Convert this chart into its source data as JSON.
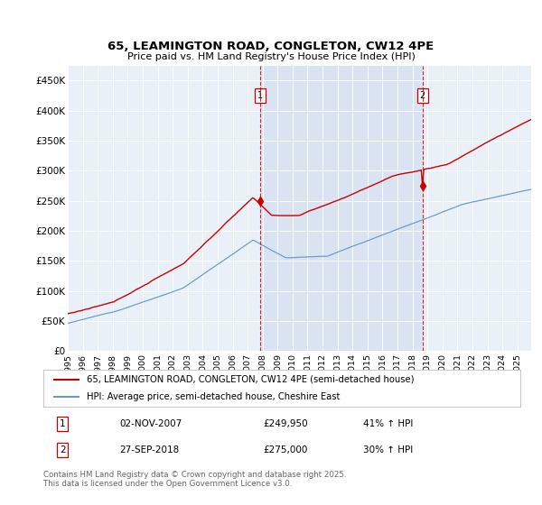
{
  "title": "65, LEAMINGTON ROAD, CONGLETON, CW12 4PE",
  "subtitle": "Price paid vs. HM Land Registry's House Price Index (HPI)",
  "background_color": "#ffffff",
  "plot_bg_color": "#dce6f5",
  "plot_bg_light": "#eaf0f8",
  "grid_color": "#ffffff",
  "red_line_color": "#cc0000",
  "blue_line_color": "#6699cc",
  "shade_color": "#ccd9ee",
  "ylim": [
    0,
    475000
  ],
  "yticks": [
    0,
    50000,
    100000,
    150000,
    200000,
    250000,
    300000,
    350000,
    400000,
    450000
  ],
  "ytick_labels": [
    "£0",
    "£50K",
    "£100K",
    "£150K",
    "£200K",
    "£250K",
    "£300K",
    "£350K",
    "£400K",
    "£450K"
  ],
  "marker1_x": "2007-11",
  "marker1_price": 249950,
  "marker1_date_str": "02-NOV-2007",
  "marker1_hpi_pct": "41% ↑ HPI",
  "marker2_x": "2018-09",
  "marker2_price": 275000,
  "marker2_date_str": "27-SEP-2018",
  "marker2_hpi_pct": "30% ↑ HPI",
  "legend_red": "65, LEAMINGTON ROAD, CONGLETON, CW12 4PE (semi-detached house)",
  "legend_blue": "HPI: Average price, semi-detached house, Cheshire East",
  "footer": "Contains HM Land Registry data © Crown copyright and database right 2025.\nThis data is licensed under the Open Government Licence v3.0."
}
